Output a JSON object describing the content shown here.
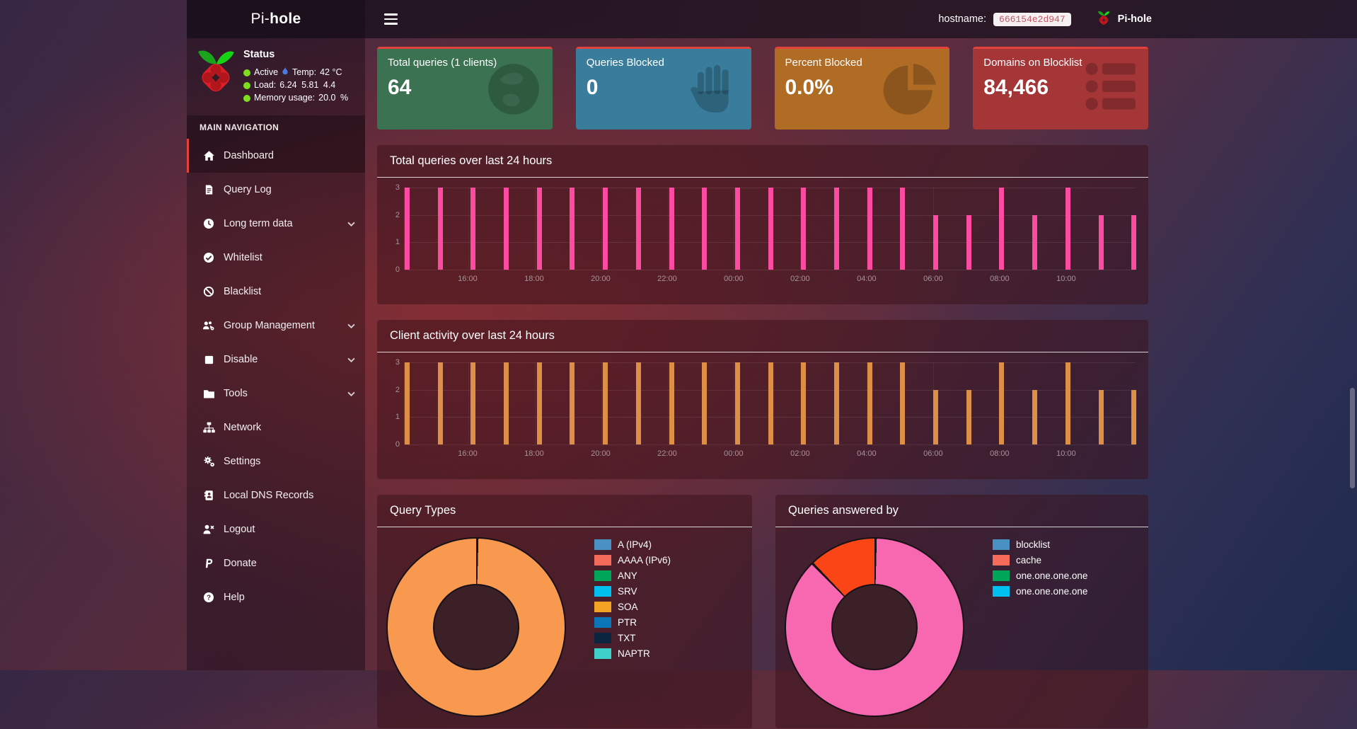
{
  "theme": {
    "accent_red": "#e2413c",
    "nav_active_border": "#e2413c",
    "status_dot_green": "#7ede1d",
    "temp_icon_blue": "#4b7bdc",
    "hostname_badge_bg": "#f7f0f2",
    "hostname_badge_text": "#c25662"
  },
  "navbar": {
    "brand_prefix": "Pi-",
    "brand_suffix": "hole",
    "hostname_label": "hostname:",
    "hostname_value": "666154e2d947",
    "product_name": "Pi-hole"
  },
  "sidebar": {
    "status": {
      "title": "Status",
      "active_label": "Active",
      "temp_label": "Temp:",
      "temp_value": "42 °C",
      "load_label": "Load:",
      "load_value": "6.24 5.81 4.4",
      "memory_label": "Memory usage:",
      "memory_value": "20.0 %"
    },
    "nav_section_label": "MAIN NAVIGATION",
    "nav_items": [
      {
        "label": "Dashboard",
        "icon": "home",
        "active": true,
        "chevron": false
      },
      {
        "label": "Query Log",
        "icon": "file",
        "active": false,
        "chevron": false
      },
      {
        "label": "Long term data",
        "icon": "clock",
        "active": false,
        "chevron": true
      },
      {
        "label": "Whitelist",
        "icon": "check-circle",
        "active": false,
        "chevron": false
      },
      {
        "label": "Blacklist",
        "icon": "ban",
        "active": false,
        "chevron": false
      },
      {
        "label": "Group Management",
        "icon": "users-gear",
        "active": false,
        "chevron": true
      },
      {
        "label": "Disable",
        "icon": "stop",
        "active": false,
        "chevron": true
      },
      {
        "label": "Tools",
        "icon": "folder",
        "active": false,
        "chevron": true
      },
      {
        "label": "Network",
        "icon": "sitemap",
        "active": false,
        "chevron": false
      },
      {
        "label": "Settings",
        "icon": "gears",
        "active": false,
        "chevron": false
      },
      {
        "label": "Local DNS Records",
        "icon": "address-book",
        "active": false,
        "chevron": false
      },
      {
        "label": "Logout",
        "icon": "user-x",
        "active": false,
        "chevron": false
      },
      {
        "label": "Donate",
        "icon": "paypal",
        "active": false,
        "chevron": false
      },
      {
        "label": "Help",
        "icon": "question-circle",
        "active": false,
        "chevron": false
      }
    ]
  },
  "cards": [
    {
      "title": "Total queries (1 clients)",
      "value": "64",
      "bg": "#3b7251",
      "icon": "globe"
    },
    {
      "title": "Queries Blocked",
      "value": "0",
      "bg": "#3a7c9c",
      "icon": "hand"
    },
    {
      "title": "Percent Blocked",
      "value": "0.0%",
      "bg": "#b06c25",
      "icon": "pie"
    },
    {
      "title": "Domains on Blocklist",
      "value": "84,466",
      "bg": "#a43638",
      "icon": "list"
    }
  ],
  "chart_data": [
    {
      "id": "queries-over-24h",
      "type": "bar",
      "title": "Total queries over last 24 hours",
      "bar_color": "#fc4ba1",
      "ylim": [
        0,
        3
      ],
      "yticks": [
        3,
        2,
        1,
        0
      ],
      "xticks": [
        "16:00",
        "18:00",
        "20:00",
        "22:00",
        "00:00",
        "02:00",
        "04:00",
        "06:00",
        "08:00",
        "10:00"
      ],
      "grid": true,
      "legend_position": "none",
      "values": [
        3,
        3,
        3,
        3,
        3,
        3,
        3,
        3,
        3,
        3,
        3,
        3,
        3,
        3,
        3,
        3,
        2,
        2,
        3,
        2,
        3,
        2,
        2
      ],
      "total_queries": 64
    },
    {
      "id": "clients-over-24h",
      "type": "bar",
      "title": "Client activity over last 24 hours",
      "bar_color": "#dd8f47",
      "ylim": [
        0,
        3
      ],
      "yticks": [
        3,
        2,
        1,
        0
      ],
      "xticks": [
        "16:00",
        "18:00",
        "20:00",
        "22:00",
        "00:00",
        "02:00",
        "04:00",
        "06:00",
        "08:00",
        "10:00"
      ],
      "grid": true,
      "legend_position": "none",
      "values": [
        3,
        3,
        3,
        3,
        3,
        3,
        3,
        3,
        3,
        3,
        3,
        3,
        3,
        3,
        3,
        3,
        2,
        2,
        3,
        2,
        3,
        2,
        2
      ]
    },
    {
      "id": "query-types",
      "type": "pie",
      "title": "Query Types",
      "donut": true,
      "slices": [
        {
          "label": "SOA",
          "pct": 100,
          "color": "#f9994f"
        }
      ],
      "legend_position": "right",
      "legend": [
        {
          "label": "A (IPv4)",
          "color": "#4a90c2"
        },
        {
          "label": "AAAA (IPv6)",
          "color": "#f56a59"
        },
        {
          "label": "ANY",
          "color": "#00a65a"
        },
        {
          "label": "SRV",
          "color": "#00c0ef"
        },
        {
          "label": "SOA",
          "color": "#f4a223"
        },
        {
          "label": "PTR",
          "color": "#0a76b7"
        },
        {
          "label": "TXT",
          "color": "#0b2440"
        },
        {
          "label": "NAPTR",
          "color": "#3fd0c9"
        }
      ]
    },
    {
      "id": "queries-answered-by",
      "type": "pie",
      "title": "Queries answered by",
      "donut": true,
      "slices": [
        {
          "label": "one.one.one.one",
          "pct": 87.5,
          "color": "#f768b0"
        },
        {
          "label": "cache",
          "pct": 12.5,
          "color": "#fa4617"
        }
      ],
      "legend_position": "right",
      "legend": [
        {
          "label": "blocklist",
          "color": "#4a90c2"
        },
        {
          "label": "cache",
          "color": "#f56a59"
        },
        {
          "label": "one.one.one.one",
          "color": "#00a65a"
        },
        {
          "label": "one.one.one.one",
          "color": "#00c0ef"
        }
      ]
    }
  ]
}
